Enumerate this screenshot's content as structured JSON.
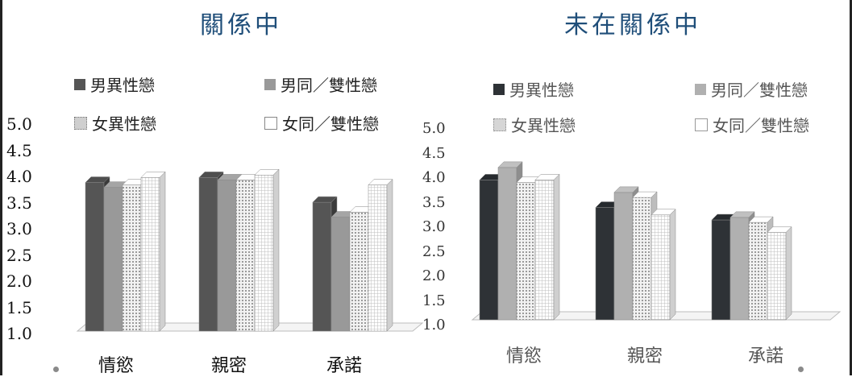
{
  "chart_data": [
    {
      "type": "bar",
      "title": "關係中",
      "categories": [
        "情慾",
        "親密",
        "承諾"
      ],
      "series": [
        {
          "name": "男異性戀",
          "values": [
            4.0,
            4.1,
            3.6
          ]
        },
        {
          "name": "男同／雙性戀",
          "values": [
            3.9,
            4.05,
            3.3
          ]
        },
        {
          "name": "女異性戀",
          "values": [
            3.95,
            4.05,
            3.4
          ]
        },
        {
          "name": "女同／雙性戀",
          "values": [
            4.1,
            4.15,
            3.95
          ]
        }
      ],
      "ylim": [
        1.0,
        5.0
      ],
      "yticks": [
        "5.0",
        "4.5",
        "4.0",
        "3.5",
        "3.0",
        "2.5",
        "2.0",
        "1.5",
        "1.0"
      ],
      "legend_position": "top"
    },
    {
      "type": "bar",
      "title": "未在關係中",
      "categories": [
        "情慾",
        "親密",
        "承諾"
      ],
      "series": [
        {
          "name": "男異性戀",
          "values": [
            3.8,
            3.25,
            3.0
          ]
        },
        {
          "name": "男同／雙性戀",
          "values": [
            4.05,
            3.55,
            3.05
          ]
        },
        {
          "name": "女異性戀",
          "values": [
            3.75,
            3.45,
            2.95
          ]
        },
        {
          "name": "女同／雙性戀",
          "values": [
            3.8,
            3.1,
            2.75
          ]
        }
      ],
      "ylim": [
        1.0,
        5.0
      ],
      "yticks": [
        "5.0",
        "4.5",
        "4.0",
        "3.5",
        "3.0",
        "2.5",
        "2.0",
        "1.5",
        "1.0"
      ],
      "legend_position": "top"
    }
  ],
  "colors": {
    "title": "#1f4e79",
    "series_left": [
      "#555555",
      "#999999",
      "#d9d9d9",
      "#ececec"
    ],
    "series_right": [
      "#2e3236",
      "#b0b0b0",
      "#dcdcdc",
      "#ececec"
    ]
  }
}
